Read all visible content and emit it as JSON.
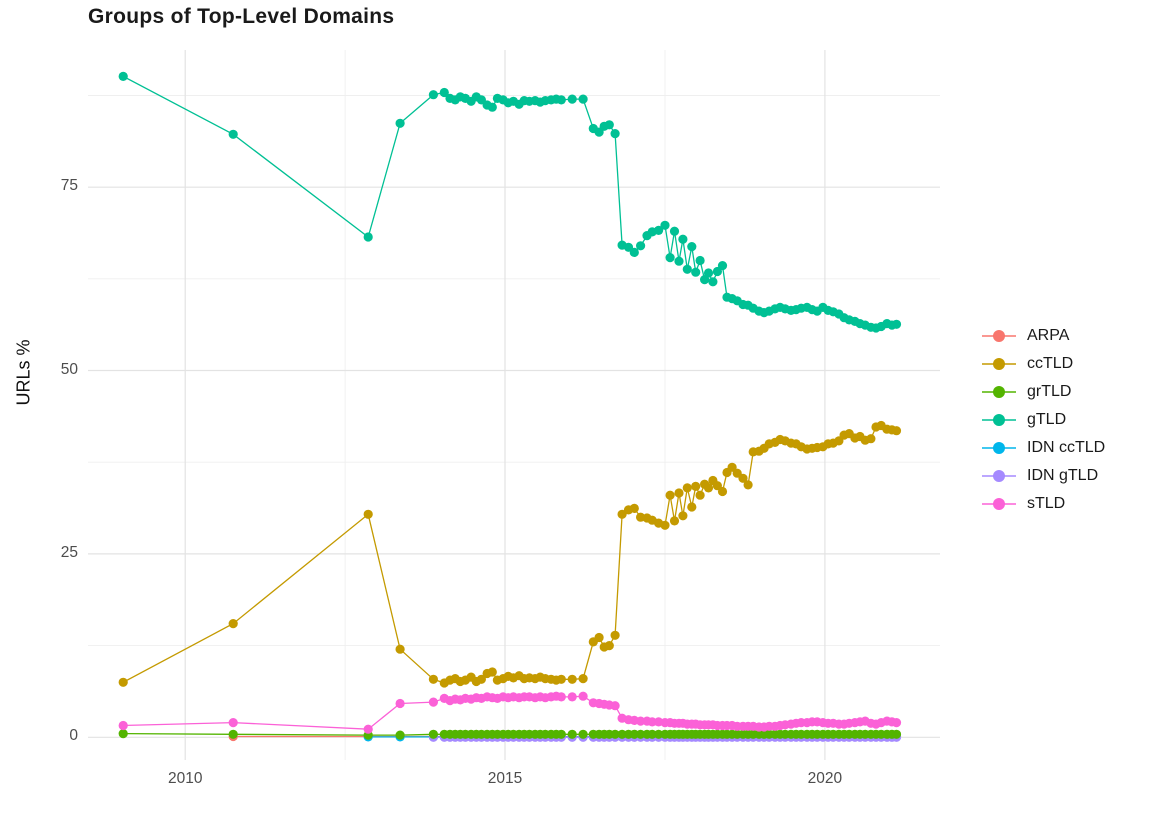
{
  "title": "Groups of Top-Level Domains",
  "y_axis_title": "URLs %",
  "chart_data": {
    "type": "line",
    "title": "Groups of Top-Level Domains",
    "xlabel": "",
    "ylabel": "URLs %",
    "grid": true,
    "legend_position": "right",
    "xlim": [
      2008.48,
      2021.8
    ],
    "ylim": [
      -3.1,
      93.7
    ],
    "x_ticks": [
      2010,
      2015,
      2020
    ],
    "y_ticks": [
      0,
      25,
      50,
      75
    ],
    "x_minor": [
      2012.5,
      2017.5
    ],
    "y_minor": [
      12.5,
      37.5,
      62.5,
      87.5
    ],
    "x": [
      2009.03,
      2010.75,
      2012.86,
      2013.36,
      2013.88,
      2014.05,
      2014.14,
      2014.22,
      2014.3,
      2014.38,
      2014.47,
      2014.55,
      2014.63,
      2014.72,
      2014.8,
      2014.88,
      2014.97,
      2015.05,
      2015.13,
      2015.22,
      2015.3,
      2015.38,
      2015.47,
      2015.55,
      2015.63,
      2015.72,
      2015.8,
      2015.88,
      2016.05,
      2016.22,
      2016.38,
      2016.47,
      2016.55,
      2016.63,
      2016.72,
      2016.83,
      2016.93,
      2017.02,
      2017.12,
      2017.22,
      2017.3,
      2017.4,
      2017.5,
      2017.58,
      2017.65,
      2017.72,
      2017.78,
      2017.85,
      2017.92,
      2017.98,
      2018.05,
      2018.12,
      2018.18,
      2018.25,
      2018.32,
      2018.4,
      2018.47,
      2018.55,
      2018.63,
      2018.72,
      2018.8,
      2018.88,
      2018.97,
      2019.05,
      2019.13,
      2019.22,
      2019.3,
      2019.38,
      2019.47,
      2019.55,
      2019.63,
      2019.72,
      2019.8,
      2019.88,
      2019.97,
      2020.05,
      2020.13,
      2020.22,
      2020.3,
      2020.38,
      2020.47,
      2020.55,
      2020.63,
      2020.72,
      2020.8,
      2020.88,
      2020.97,
      2021.05,
      2021.12
    ],
    "series": [
      {
        "name": "ARPA",
        "color": "#F8766D",
        "z": 1,
        "start_index": 1,
        "fill_value": 0.1
      },
      {
        "name": "ccTLD",
        "color": "#C49A00",
        "z": 4,
        "values": [
          7.5,
          15.5,
          30.4,
          12.0,
          7.9,
          7.4,
          7.8,
          8.0,
          7.6,
          7.8,
          8.2,
          7.6,
          7.9,
          8.7,
          8.9,
          7.8,
          8.0,
          8.3,
          8.1,
          8.4,
          8.0,
          8.1,
          8.0,
          8.2,
          8.0,
          7.9,
          7.8,
          7.9,
          7.9,
          8.0,
          13.0,
          13.6,
          12.3,
          12.5,
          13.9,
          30.4,
          31.0,
          31.2,
          30.0,
          29.9,
          29.6,
          29.2,
          28.9,
          33.0,
          29.5,
          33.3,
          30.2,
          34.0,
          31.4,
          34.2,
          33.0,
          34.5,
          34.0,
          35.0,
          34.3,
          33.5,
          36.1,
          36.8,
          36.0,
          35.3,
          34.4,
          38.9,
          39.0,
          39.4,
          40.0,
          40.2,
          40.6,
          40.4,
          40.1,
          40.0,
          39.6,
          39.3,
          39.4,
          39.5,
          39.6,
          40.0,
          40.1,
          40.4,
          41.2,
          41.4,
          40.8,
          41.0,
          40.5,
          40.7,
          42.3,
          42.5,
          42.0,
          41.9,
          41.8
        ]
      },
      {
        "name": "grTLD",
        "color": "#53B400",
        "z": 6,
        "start_index": 0,
        "head": [
          0.5,
          0.4,
          0.3,
          0.3
        ],
        "fill_value": 0.4
      },
      {
        "name": "gTLD",
        "color": "#00C094",
        "z": 5,
        "values": [
          90.1,
          82.2,
          68.2,
          83.7,
          87.6,
          87.9,
          87.1,
          86.9,
          87.3,
          87.1,
          86.7,
          87.3,
          86.9,
          86.2,
          85.9,
          87.1,
          86.9,
          86.5,
          86.7,
          86.3,
          86.8,
          86.7,
          86.8,
          86.6,
          86.8,
          86.9,
          87.0,
          86.9,
          87.0,
          87.0,
          83.0,
          82.5,
          83.3,
          83.5,
          82.3,
          67.1,
          66.8,
          66.1,
          67.0,
          68.4,
          68.9,
          69.1,
          69.8,
          65.4,
          69.0,
          64.9,
          67.9,
          63.8,
          66.9,
          63.4,
          65.0,
          62.4,
          63.3,
          62.1,
          63.5,
          64.3,
          60.0,
          59.8,
          59.5,
          59.0,
          58.9,
          58.5,
          58.1,
          57.9,
          58.1,
          58.4,
          58.6,
          58.4,
          58.2,
          58.3,
          58.5,
          58.6,
          58.3,
          58.1,
          58.6,
          58.2,
          58.0,
          57.7,
          57.2,
          56.9,
          56.7,
          56.4,
          56.2,
          55.9,
          55.8,
          56.0,
          56.4,
          56.2,
          56.3
        ]
      },
      {
        "name": "IDN ccTLD",
        "color": "#00B6EB",
        "z": 2,
        "start_index": 2,
        "fill_value": 0.05
      },
      {
        "name": "IDN gTLD",
        "color": "#A58AFF",
        "z": 3,
        "start_index": 4,
        "fill_value": 0.0
      },
      {
        "name": "sTLD",
        "color": "#FB61D7",
        "z": 7,
        "values": [
          1.6,
          2.0,
          1.1,
          4.6,
          4.8,
          5.3,
          5.0,
          5.2,
          5.1,
          5.3,
          5.2,
          5.4,
          5.3,
          5.5,
          5.4,
          5.3,
          5.5,
          5.4,
          5.5,
          5.4,
          5.5,
          5.5,
          5.4,
          5.5,
          5.4,
          5.5,
          5.6,
          5.5,
          5.5,
          5.6,
          4.7,
          4.6,
          4.5,
          4.4,
          4.3,
          2.6,
          2.4,
          2.3,
          2.2,
          2.2,
          2.1,
          2.1,
          2.0,
          2.0,
          1.9,
          1.9,
          1.9,
          1.8,
          1.8,
          1.8,
          1.7,
          1.7,
          1.7,
          1.7,
          1.6,
          1.6,
          1.6,
          1.6,
          1.5,
          1.5,
          1.5,
          1.5,
          1.4,
          1.4,
          1.5,
          1.5,
          1.6,
          1.7,
          1.8,
          1.9,
          2.0,
          2.0,
          2.1,
          2.1,
          2.0,
          1.9,
          1.9,
          1.8,
          1.8,
          1.9,
          2.0,
          2.1,
          2.2,
          1.9,
          1.8,
          2.0,
          2.2,
          2.1,
          2.0
        ]
      }
    ]
  },
  "grid_colors": {
    "major": "#e3e3e3",
    "minor": "#efefef"
  }
}
